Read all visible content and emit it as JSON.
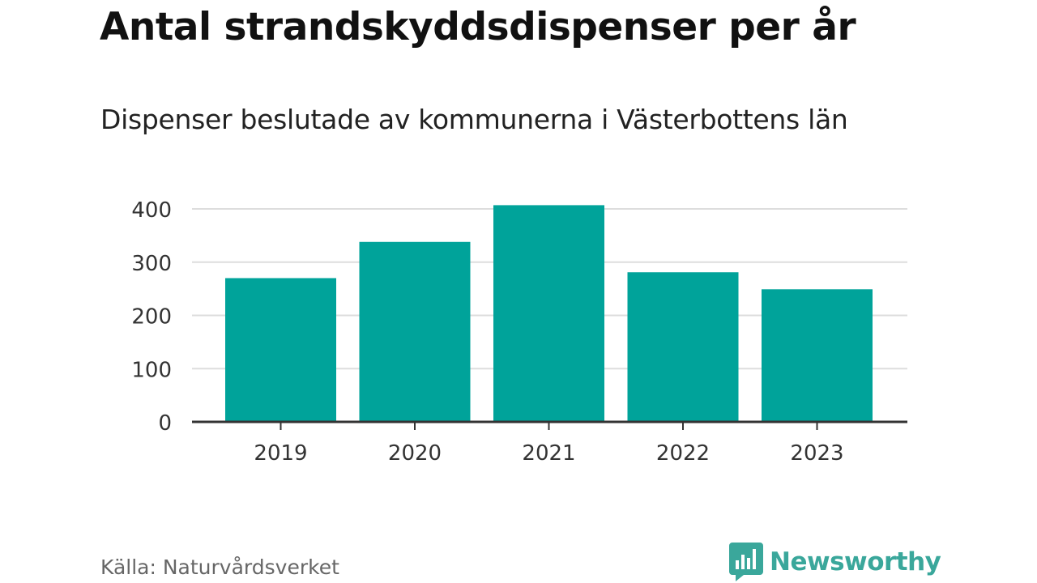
{
  "header": {
    "title": "Antal strandskyddsdispenser per år",
    "subtitle": "Dispenser beslutade av kommunerna i Västerbottens län"
  },
  "footer": {
    "source": "Källa: Naturvårdsverket",
    "brand": "Newsworthy"
  },
  "colors": {
    "bar": "#00a39a",
    "grid": "#dddddd",
    "axis": "#333333",
    "brand": "#3aa79b"
  },
  "chart_data": {
    "type": "bar",
    "categories": [
      "2019",
      "2020",
      "2021",
      "2022",
      "2023"
    ],
    "values": [
      270,
      338,
      407,
      281,
      249
    ],
    "y_ticks": [
      0,
      100,
      200,
      300,
      400
    ],
    "ylim": [
      0,
      420
    ],
    "grid": true,
    "legend": "none"
  }
}
